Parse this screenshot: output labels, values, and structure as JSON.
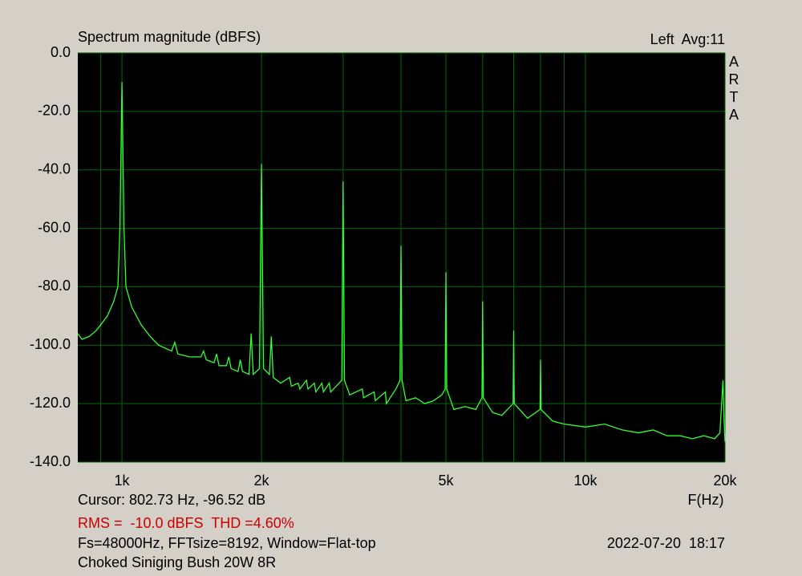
{
  "chart_data": {
    "type": "line",
    "title": "Spectrum magnitude (dBFS)",
    "channel_label": "Left  Avg:11",
    "brand": "ARTA",
    "xlabel": "F(Hz)",
    "cursor": "Cursor: 802.73 Hz, -96.52 dB",
    "measurement": "RMS =  -10.0 dBFS  THD =4.60%",
    "settings": "Fs=48000Hz, FFTsize=8192, Window=Flat-top",
    "timestamp": "2022-07-20  18:17",
    "caption": "Choked Siniging Bush 20W 8R",
    "xscale": "log",
    "grid": true,
    "color": "#33ff33",
    "xlim": [
      803,
      20000
    ],
    "ylim": [
      -140,
      0
    ],
    "xticks": [
      {
        "value": 1000,
        "label": "1k"
      },
      {
        "value": 2000,
        "label": "2k"
      },
      {
        "value": 5000,
        "label": "5k"
      },
      {
        "value": 10000,
        "label": "10k"
      },
      {
        "value": 20000,
        "label": "20k"
      }
    ],
    "xgrid": [
      900,
      3000,
      4000,
      6000,
      7000,
      8000,
      9000
    ],
    "yticks": [
      {
        "value": 0,
        "label": "0.0"
      },
      {
        "value": -20,
        "label": "-20.0"
      },
      {
        "value": -40,
        "label": "-40.0"
      },
      {
        "value": -60,
        "label": "-60.0"
      },
      {
        "value": -80,
        "label": "-80.0"
      },
      {
        "value": -100,
        "label": "-100.0"
      },
      {
        "value": -120,
        "label": "-120.0"
      },
      {
        "value": -140,
        "label": "-140.0"
      }
    ],
    "x": [
      803,
      820,
      850,
      880,
      900,
      930,
      960,
      980,
      990,
      1000,
      1010,
      1020,
      1050,
      1100,
      1150,
      1200,
      1280,
      1300,
      1320,
      1400,
      1480,
      1500,
      1520,
      1580,
      1600,
      1620,
      1680,
      1700,
      1720,
      1780,
      1800,
      1820,
      1880,
      1900,
      1920,
      1980,
      2000,
      2020,
      2080,
      2100,
      2120,
      2200,
      2300,
      2320,
      2400,
      2420,
      2500,
      2520,
      2600,
      2620,
      2700,
      2720,
      2800,
      2820,
      2900,
      2980,
      3000,
      3020,
      3100,
      3300,
      3320,
      3500,
      3520,
      3700,
      3720,
      3900,
      3980,
      4000,
      4020,
      4100,
      4300,
      4500,
      4700,
      4900,
      4980,
      5000,
      5020,
      5200,
      5500,
      5800,
      5980,
      6000,
      6020,
      6300,
      6600,
      6980,
      7000,
      7020,
      7500,
      7980,
      8000,
      8020,
      8500,
      9000,
      10000,
      11000,
      12000,
      13000,
      14000,
      15000,
      16000,
      17000,
      18000,
      19000,
      19500,
      19700,
      19800,
      19900,
      20000
    ],
    "values": [
      -96,
      -98,
      -97,
      -95,
      -93,
      -90,
      -85,
      -80,
      -60,
      -10,
      -60,
      -80,
      -87,
      -93,
      -97,
      -100,
      -102,
      -99,
      -103,
      -104,
      -104,
      -102,
      -105,
      -106,
      -103,
      -107,
      -107,
      -104,
      -108,
      -109,
      -105,
      -109,
      -110,
      -96,
      -110,
      -108,
      -38,
      -108,
      -110,
      -97,
      -111,
      -113,
      -111,
      -114,
      -113,
      -115,
      -112,
      -115,
      -113,
      -116,
      -113,
      -116,
      -113,
      -116,
      -114,
      -112,
      -44,
      -112,
      -117,
      -115,
      -118,
      -116,
      -119,
      -116,
      -120,
      -115,
      -112,
      -66,
      -112,
      -119,
      -118,
      -120,
      -119,
      -117,
      -115,
      -75,
      -115,
      -122,
      -121,
      -122,
      -118,
      -85,
      -118,
      -123,
      -124,
      -120,
      -95,
      -120,
      -125,
      -122,
      -105,
      -122,
      -126,
      -127,
      -128,
      -127,
      -129,
      -130,
      -129,
      -131,
      -131,
      -132,
      -131,
      -132,
      -130,
      -118,
      -112,
      -125,
      -133
    ]
  }
}
